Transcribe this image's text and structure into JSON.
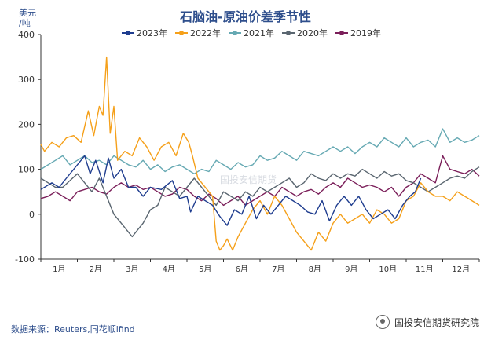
{
  "chart_data": {
    "type": "line",
    "title": "石脑油-原油价差季节性",
    "ylabel": "美元\n/吨",
    "ylabel_line1": "美元",
    "ylabel_line2": "/吨",
    "ylim": [
      -100,
      400
    ],
    "yticks": [
      -100,
      0,
      100,
      200,
      300,
      400
    ],
    "xticks": [
      "1月",
      "2月",
      "3月",
      "4月",
      "5月",
      "6月",
      "7月",
      "8月",
      "9月",
      "10月",
      "11月",
      "12月"
    ],
    "legend_position": "top",
    "grid": false,
    "series": [
      {
        "name": "2023年",
        "color": "#1f3d8f",
        "values": [
          [
            1,
            55
          ],
          [
            1.3,
            70
          ],
          [
            1.5,
            60
          ],
          [
            1.7,
            80
          ],
          [
            2.0,
            110
          ],
          [
            2.2,
            130
          ],
          [
            2.35,
            90
          ],
          [
            2.5,
            120
          ],
          [
            2.7,
            70
          ],
          [
            2.85,
            125
          ],
          [
            3.0,
            80
          ],
          [
            3.2,
            100
          ],
          [
            3.4,
            60
          ],
          [
            3.6,
            60
          ],
          [
            3.8,
            40
          ],
          [
            4.0,
            60
          ],
          [
            4.3,
            55
          ],
          [
            4.6,
            75
          ],
          [
            4.8,
            35
          ],
          [
            5.0,
            40
          ],
          [
            5.1,
            5
          ],
          [
            5.3,
            40
          ],
          [
            5.5,
            30
          ],
          [
            5.7,
            20
          ],
          [
            5.9,
            -5
          ],
          [
            6.1,
            -25
          ],
          [
            6.3,
            10
          ],
          [
            6.5,
            0
          ],
          [
            6.7,
            40
          ],
          [
            6.9,
            -10
          ],
          [
            7.1,
            20
          ],
          [
            7.3,
            0
          ],
          [
            7.5,
            20
          ],
          [
            7.7,
            40
          ],
          [
            7.9,
            30
          ],
          [
            8.1,
            20
          ],
          [
            8.3,
            5
          ],
          [
            8.5,
            0
          ],
          [
            8.7,
            30
          ],
          [
            8.9,
            -15
          ],
          [
            9.1,
            20
          ],
          [
            9.3,
            40
          ],
          [
            9.5,
            20
          ],
          [
            9.7,
            40
          ],
          [
            9.9,
            10
          ],
          [
            10.1,
            -10
          ],
          [
            10.3,
            0
          ],
          [
            10.5,
            10
          ],
          [
            10.7,
            -10
          ],
          [
            10.9,
            20
          ],
          [
            11.1,
            40
          ],
          [
            11.25,
            50
          ],
          [
            11.4,
            80
          ]
        ]
      },
      {
        "name": "2022年",
        "color": "#f5a01a",
        "values": [
          [
            1,
            155
          ],
          [
            1.1,
            140
          ],
          [
            1.3,
            160
          ],
          [
            1.5,
            150
          ],
          [
            1.7,
            170
          ],
          [
            1.9,
            175
          ],
          [
            2.1,
            160
          ],
          [
            2.3,
            230
          ],
          [
            2.45,
            175
          ],
          [
            2.6,
            240
          ],
          [
            2.7,
            220
          ],
          [
            2.8,
            350
          ],
          [
            2.9,
            180
          ],
          [
            3.0,
            240
          ],
          [
            3.1,
            120
          ],
          [
            3.3,
            140
          ],
          [
            3.5,
            130
          ],
          [
            3.7,
            170
          ],
          [
            3.9,
            150
          ],
          [
            4.1,
            120
          ],
          [
            4.3,
            150
          ],
          [
            4.5,
            160
          ],
          [
            4.7,
            130
          ],
          [
            4.9,
            180
          ],
          [
            5.05,
            160
          ],
          [
            5.15,
            130
          ],
          [
            5.3,
            80
          ],
          [
            5.5,
            60
          ],
          [
            5.7,
            40
          ],
          [
            5.8,
            -60
          ],
          [
            5.9,
            -80
          ],
          [
            6.0,
            -70
          ],
          [
            6.1,
            -55
          ],
          [
            6.25,
            -80
          ],
          [
            6.4,
            -50
          ],
          [
            6.6,
            -20
          ],
          [
            6.8,
            10
          ],
          [
            7.0,
            30
          ],
          [
            7.2,
            0
          ],
          [
            7.4,
            40
          ],
          [
            7.6,
            20
          ],
          [
            7.8,
            -10
          ],
          [
            8.0,
            -40
          ],
          [
            8.2,
            -60
          ],
          [
            8.4,
            -80
          ],
          [
            8.6,
            -40
          ],
          [
            8.8,
            -60
          ],
          [
            9.0,
            -20
          ],
          [
            9.2,
            0
          ],
          [
            9.4,
            -20
          ],
          [
            9.6,
            -10
          ],
          [
            9.8,
            0
          ],
          [
            10.0,
            -20
          ],
          [
            10.2,
            10
          ],
          [
            10.4,
            0
          ],
          [
            10.6,
            -20
          ],
          [
            10.8,
            -10
          ],
          [
            11.0,
            30
          ],
          [
            11.2,
            40
          ],
          [
            11.4,
            70
          ],
          [
            11.6,
            50
          ],
          [
            11.8,
            40
          ],
          [
            12.0,
            40
          ],
          [
            12.2,
            30
          ],
          [
            12.4,
            50
          ],
          [
            12.6,
            40
          ],
          [
            12.8,
            30
          ],
          [
            13.0,
            20
          ]
        ]
      },
      {
        "name": "2021年",
        "color": "#66a9b3",
        "values": [
          [
            1,
            100
          ],
          [
            1.2,
            110
          ],
          [
            1.4,
            120
          ],
          [
            1.6,
            130
          ],
          [
            1.8,
            110
          ],
          [
            2.0,
            120
          ],
          [
            2.2,
            130
          ],
          [
            2.4,
            115
          ],
          [
            2.6,
            120
          ],
          [
            2.8,
            110
          ],
          [
            3.0,
            130
          ],
          [
            3.2,
            120
          ],
          [
            3.4,
            110
          ],
          [
            3.6,
            105
          ],
          [
            3.8,
            120
          ],
          [
            4.0,
            100
          ],
          [
            4.2,
            110
          ],
          [
            4.4,
            95
          ],
          [
            4.6,
            105
          ],
          [
            4.8,
            110
          ],
          [
            5.0,
            100
          ],
          [
            5.2,
            90
          ],
          [
            5.4,
            100
          ],
          [
            5.6,
            95
          ],
          [
            5.8,
            120
          ],
          [
            6.0,
            110
          ],
          [
            6.2,
            100
          ],
          [
            6.4,
            115
          ],
          [
            6.6,
            105
          ],
          [
            6.8,
            110
          ],
          [
            7.0,
            130
          ],
          [
            7.2,
            120
          ],
          [
            7.4,
            125
          ],
          [
            7.6,
            140
          ],
          [
            7.8,
            130
          ],
          [
            8.0,
            120
          ],
          [
            8.2,
            140
          ],
          [
            8.4,
            135
          ],
          [
            8.6,
            130
          ],
          [
            8.8,
            140
          ],
          [
            9.0,
            150
          ],
          [
            9.2,
            140
          ],
          [
            9.4,
            150
          ],
          [
            9.6,
            135
          ],
          [
            9.8,
            150
          ],
          [
            10.0,
            160
          ],
          [
            10.2,
            150
          ],
          [
            10.4,
            170
          ],
          [
            10.6,
            160
          ],
          [
            10.8,
            150
          ],
          [
            11.0,
            170
          ],
          [
            11.2,
            150
          ],
          [
            11.4,
            160
          ],
          [
            11.6,
            165
          ],
          [
            11.8,
            150
          ],
          [
            12.0,
            190
          ],
          [
            12.2,
            160
          ],
          [
            12.4,
            170
          ],
          [
            12.6,
            160
          ],
          [
            12.8,
            165
          ],
          [
            13.0,
            175
          ]
        ]
      },
      {
        "name": "2020年",
        "color": "#5a6670",
        "values": [
          [
            1,
            80
          ],
          [
            1.2,
            70
          ],
          [
            1.4,
            60
          ],
          [
            1.6,
            60
          ],
          [
            1.8,
            75
          ],
          [
            2.0,
            90
          ],
          [
            2.2,
            70
          ],
          [
            2.4,
            50
          ],
          [
            2.6,
            80
          ],
          [
            2.8,
            40
          ],
          [
            3.0,
            0
          ],
          [
            3.2,
            -20
          ],
          [
            3.4,
            -40
          ],
          [
            3.5,
            -50
          ],
          [
            3.6,
            -40
          ],
          [
            3.8,
            -20
          ],
          [
            4.0,
            10
          ],
          [
            4.2,
            20
          ],
          [
            4.4,
            60
          ],
          [
            4.6,
            50
          ],
          [
            4.8,
            40
          ],
          [
            5.0,
            60
          ],
          [
            5.2,
            80
          ],
          [
            5.4,
            60
          ],
          [
            5.6,
            40
          ],
          [
            5.8,
            20
          ],
          [
            6.0,
            50
          ],
          [
            6.2,
            40
          ],
          [
            6.4,
            30
          ],
          [
            6.6,
            50
          ],
          [
            6.8,
            40
          ],
          [
            7.0,
            60
          ],
          [
            7.2,
            50
          ],
          [
            7.4,
            60
          ],
          [
            7.6,
            70
          ],
          [
            7.8,
            80
          ],
          [
            8.0,
            60
          ],
          [
            8.2,
            70
          ],
          [
            8.4,
            90
          ],
          [
            8.6,
            80
          ],
          [
            8.8,
            75
          ],
          [
            9.0,
            90
          ],
          [
            9.2,
            80
          ],
          [
            9.4,
            90
          ],
          [
            9.6,
            85
          ],
          [
            9.8,
            100
          ],
          [
            10.0,
            90
          ],
          [
            10.2,
            80
          ],
          [
            10.4,
            95
          ],
          [
            10.6,
            85
          ],
          [
            10.8,
            90
          ],
          [
            11.0,
            75
          ],
          [
            11.2,
            70
          ],
          [
            11.4,
            60
          ],
          [
            11.6,
            50
          ],
          [
            11.8,
            60
          ],
          [
            12.0,
            70
          ],
          [
            12.2,
            80
          ],
          [
            12.4,
            85
          ],
          [
            12.6,
            80
          ],
          [
            12.8,
            95
          ],
          [
            13.0,
            105
          ]
        ]
      },
      {
        "name": "2019年",
        "color": "#7b1f5a",
        "values": [
          [
            1,
            35
          ],
          [
            1.2,
            40
          ],
          [
            1.4,
            50
          ],
          [
            1.6,
            40
          ],
          [
            1.8,
            30
          ],
          [
            2.0,
            50
          ],
          [
            2.2,
            55
          ],
          [
            2.4,
            60
          ],
          [
            2.6,
            50
          ],
          [
            2.8,
            45
          ],
          [
            3.0,
            60
          ],
          [
            3.2,
            70
          ],
          [
            3.4,
            60
          ],
          [
            3.6,
            65
          ],
          [
            3.8,
            55
          ],
          [
            4.0,
            60
          ],
          [
            4.2,
            50
          ],
          [
            4.4,
            40
          ],
          [
            4.6,
            45
          ],
          [
            4.8,
            60
          ],
          [
            5.0,
            55
          ],
          [
            5.2,
            40
          ],
          [
            5.4,
            30
          ],
          [
            5.6,
            45
          ],
          [
            5.8,
            35
          ],
          [
            6.0,
            20
          ],
          [
            6.2,
            30
          ],
          [
            6.4,
            40
          ],
          [
            6.6,
            20
          ],
          [
            6.8,
            30
          ],
          [
            7.0,
            40
          ],
          [
            7.2,
            50
          ],
          [
            7.4,
            40
          ],
          [
            7.6,
            60
          ],
          [
            7.8,
            50
          ],
          [
            8.0,
            40
          ],
          [
            8.2,
            50
          ],
          [
            8.4,
            55
          ],
          [
            8.6,
            45
          ],
          [
            8.8,
            60
          ],
          [
            9.0,
            70
          ],
          [
            9.2,
            60
          ],
          [
            9.4,
            80
          ],
          [
            9.6,
            70
          ],
          [
            9.8,
            60
          ],
          [
            10.0,
            65
          ],
          [
            10.2,
            60
          ],
          [
            10.4,
            50
          ],
          [
            10.6,
            60
          ],
          [
            10.8,
            40
          ],
          [
            11.0,
            60
          ],
          [
            11.2,
            70
          ],
          [
            11.4,
            90
          ],
          [
            11.6,
            80
          ],
          [
            11.8,
            70
          ],
          [
            12.0,
            130
          ],
          [
            12.2,
            100
          ],
          [
            12.4,
            95
          ],
          [
            12.6,
            90
          ],
          [
            12.8,
            100
          ],
          [
            13.0,
            85
          ]
        ]
      }
    ]
  },
  "legend": [
    {
      "label": "2023年",
      "color": "#1f3d8f"
    },
    {
      "label": "2022年",
      "color": "#f5a01a"
    },
    {
      "label": "2021年",
      "color": "#66a9b3"
    },
    {
      "label": "2020年",
      "color": "#5a6670"
    },
    {
      "label": "2019年",
      "color": "#7b1f5a"
    }
  ],
  "source": "数据来源：Reuters,同花顺ifind",
  "brand": "国投安信期货研究院",
  "watermark": "国投安信期货"
}
